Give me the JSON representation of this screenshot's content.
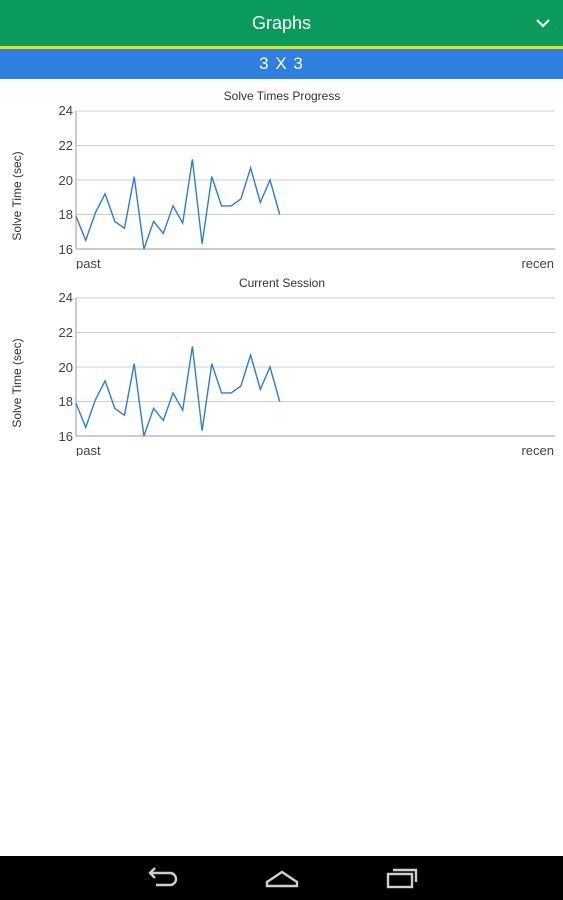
{
  "header": {
    "title": "Graphs",
    "menu_icon": "chevron-down-icon"
  },
  "puzzle_selector": {
    "label": "3 X 3"
  },
  "charts": [
    {
      "title": "Solve Times Progress",
      "ylabel": "Solve Time (sec)",
      "x_start_label": "past",
      "x_end_label": "recen",
      "y_ticks": [
        "16",
        "18",
        "20",
        "22",
        "24"
      ]
    },
    {
      "title": "Current Session",
      "ylabel": "Solve Time (sec)",
      "x_start_label": "past",
      "x_end_label": "recen",
      "y_ticks": [
        "16",
        "18",
        "20",
        "22",
        "24"
      ]
    }
  ],
  "chart_data": [
    {
      "type": "line",
      "title": "Solve Times Progress",
      "xlabel": "",
      "ylabel": "Solve Time (sec)",
      "ylim": [
        16,
        24
      ],
      "yticks": [
        16,
        18,
        20,
        22,
        24
      ],
      "x_tick_labels": [
        "past",
        "recen"
      ],
      "grid": true,
      "line_color": "#2e7dd1",
      "values": [
        17.9,
        16.5,
        18.1,
        19.2,
        17.6,
        17.2,
        20.2,
        16.0,
        17.6,
        16.9,
        18.5,
        17.5,
        21.2,
        16.3,
        20.2,
        18.5,
        18.5,
        18.9,
        20.7,
        18.7,
        20.0,
        18.0
      ]
    },
    {
      "type": "line",
      "title": "Current Session",
      "xlabel": "",
      "ylabel": "Solve Time (sec)",
      "ylim": [
        16,
        24
      ],
      "yticks": [
        16,
        18,
        20,
        22,
        24
      ],
      "x_tick_labels": [
        "past",
        "recen"
      ],
      "grid": true,
      "line_color": "#2e7dd1",
      "values": [
        17.9,
        16.5,
        18.1,
        19.2,
        17.6,
        17.2,
        20.2,
        16.0,
        17.6,
        16.9,
        18.5,
        17.5,
        21.2,
        16.3,
        20.2,
        18.5,
        18.5,
        18.9,
        20.7,
        18.7,
        20.0,
        18.0
      ]
    }
  ],
  "navigation": {
    "back_icon": "back-icon",
    "home_icon": "home-icon",
    "recents_icon": "recents-icon"
  },
  "colors": {
    "header": "#0a9a5c",
    "accent_line": "#e6e21c",
    "puzzle_bar": "#2f7fe1",
    "navbar": "#000000"
  }
}
